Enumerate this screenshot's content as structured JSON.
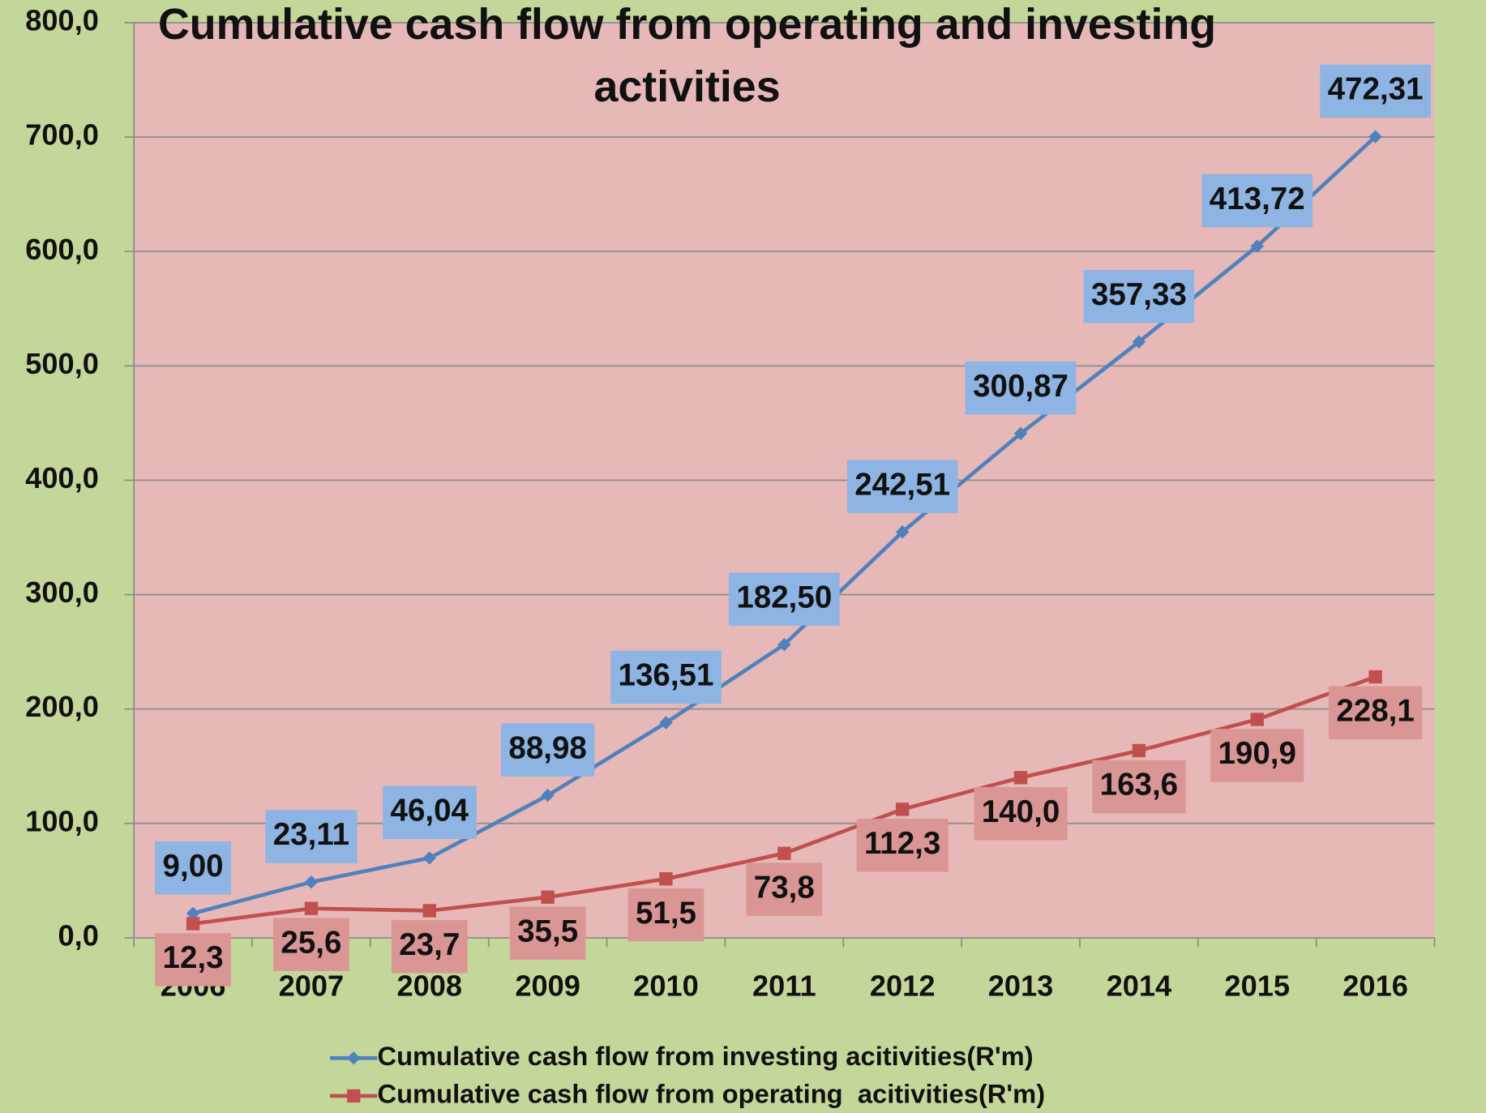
{
  "chart_data": {
    "type": "line",
    "stacked": true,
    "title": "Cumulative cash flow from operating and investing activities",
    "categories": [
      "2006",
      "2007",
      "2008",
      "2009",
      "2010",
      "2011",
      "2012",
      "2013",
      "2014",
      "2015",
      "2016"
    ],
    "series": [
      {
        "name": "Cumulative cash flow from investing acitivities(R'm)",
        "color": "#4f81bd",
        "label_color": "#8db4e2",
        "marker": "diamond",
        "values": [
          9.0,
          23.11,
          46.04,
          88.98,
          136.51,
          182.5,
          242.51,
          300.87,
          357.33,
          413.72,
          472.31
        ],
        "value_labels": [
          "9,00",
          "23,11",
          "46,04",
          "88,98",
          "136,51",
          "182,50",
          "242,51",
          "300,87",
          "357,33",
          "413,72",
          "472,31"
        ]
      },
      {
        "name": "Cumulative cash flow from operating  acitivities(R'm)",
        "color": "#c0504d",
        "label_color": "#da9694",
        "marker": "square",
        "values": [
          12.3,
          25.6,
          23.7,
          35.5,
          51.5,
          73.8,
          112.3,
          140.0,
          163.6,
          190.9,
          228.1
        ],
        "value_labels": [
          "12,3",
          "25,6",
          "23,7",
          "35,5",
          "51,5",
          "73,8",
          "112,3",
          "140,0",
          "163,6",
          "190,9",
          "228,1"
        ]
      }
    ],
    "ylim": [
      0,
      800
    ],
    "yticks": [
      {
        "value": 0,
        "label": "0,0"
      },
      {
        "value": 100,
        "label": "100,0"
      },
      {
        "value": 200,
        "label": "200,0"
      },
      {
        "value": 300,
        "label": "300,0"
      },
      {
        "value": 400,
        "label": "400,0"
      },
      {
        "value": 500,
        "label": "500,0"
      },
      {
        "value": 600,
        "label": "600,0"
      },
      {
        "value": 700,
        "label": "700,0"
      },
      {
        "value": 800,
        "label": "800,0"
      }
    ],
    "grid": true,
    "legend": "bottom"
  }
}
